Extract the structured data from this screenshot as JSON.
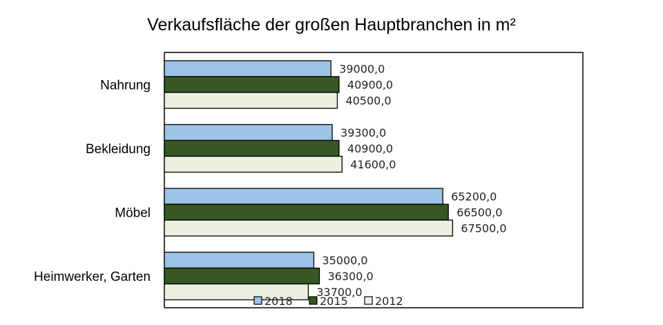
{
  "chart_data": {
    "type": "bar",
    "orientation": "horizontal",
    "title": "Verkaufsfläche der großen Hauptbranchen in m²",
    "categories": [
      "Nahrung",
      "Bekleidung",
      "Möbel",
      "Heimwerker, Garten"
    ],
    "series": [
      {
        "name": "2018",
        "color": "#9dc3e6",
        "values": [
          39000,
          39300,
          65200,
          35000
        ],
        "labels": [
          "39000,0",
          "39300,0",
          "65200,0",
          "35000,0"
        ]
      },
      {
        "name": "2015",
        "color": "#385723",
        "values": [
          40900,
          40900,
          66500,
          36300
        ],
        "labels": [
          "40900,0",
          "40900,0",
          "66500,0",
          "36300,0"
        ]
      },
      {
        "name": "2012",
        "color": "#ebf1de",
        "values": [
          40500,
          41600,
          67500,
          33700
        ],
        "labels": [
          "40500,0",
          "41600,0",
          "67500,0",
          "33700,0"
        ]
      }
    ],
    "xlim": [
      0,
      98000
    ],
    "grid": false,
    "legend": "bottom-center",
    "legend_items": [
      {
        "label": "2018",
        "color": "#9dc3e6"
      },
      {
        "label": "2015",
        "color": "#385723"
      },
      {
        "label": "2012",
        "color": "#ebf1de"
      }
    ]
  }
}
